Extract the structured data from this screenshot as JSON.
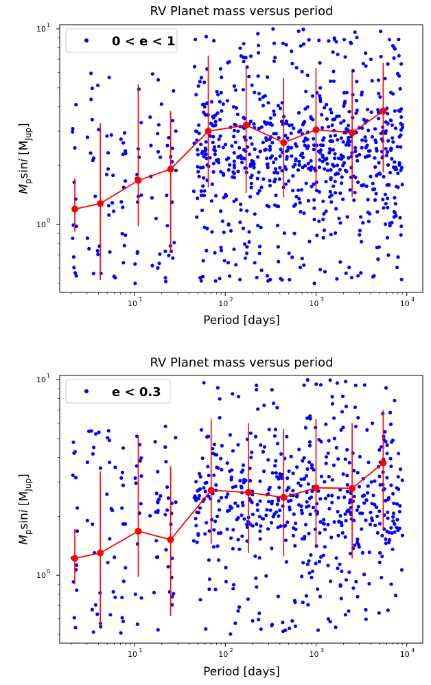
{
  "chart_data": [
    {
      "type": "scatter",
      "title": "RV Planet mass versus period",
      "xlabel": "Period [days]",
      "ylabel": "M_p sin i [M_Jup]",
      "xscale": "log",
      "yscale": "log",
      "xlim": [
        1.5,
        15000
      ],
      "ylim": [
        0.45,
        10.5
      ],
      "xticks": [
        {
          "value": 10,
          "base": "10",
          "exp": "1"
        },
        {
          "value": 100,
          "base": "10",
          "exp": "2"
        },
        {
          "value": 1000,
          "base": "10",
          "exp": "3"
        },
        {
          "value": 10000,
          "base": "10",
          "exp": "4"
        }
      ],
      "yticks": [
        {
          "value": 1,
          "base": "10",
          "exp": "0"
        },
        {
          "value": 10,
          "base": "10",
          "exp": "1"
        }
      ],
      "legend": {
        "position": "top-left",
        "label": "0 < e < 1"
      },
      "colors": {
        "points": "#0000ff",
        "binned": "#ff0000"
      },
      "scatter_seed": 11,
      "binned": {
        "x": [
          2.2,
          4.2,
          11,
          25,
          65,
          170,
          440,
          1000,
          2500,
          5500
        ],
        "y": [
          1.2,
          1.28,
          1.68,
          1.92,
          3.0,
          3.22,
          2.62,
          3.05,
          2.95,
          3.8
        ],
        "lower": [
          0.92,
          0.52,
          0.98,
          0.72,
          1.55,
          1.45,
          1.38,
          1.5,
          1.38,
          1.85
        ],
        "upper": [
          1.72,
          3.3,
          5.2,
          3.8,
          7.3,
          6.5,
          5.6,
          6.3,
          6.0,
          6.7
        ]
      }
    },
    {
      "type": "scatter",
      "title": "RV Planet mass versus period",
      "xlabel": "Period [days]",
      "ylabel": "M_p sin i [M_Jup]",
      "xscale": "log",
      "yscale": "log",
      "xlim": [
        1.5,
        15000
      ],
      "ylim": [
        0.45,
        10.5
      ],
      "xticks": [
        {
          "value": 10,
          "base": "10",
          "exp": "1"
        },
        {
          "value": 100,
          "base": "10",
          "exp": "2"
        },
        {
          "value": 1000,
          "base": "10",
          "exp": "3"
        },
        {
          "value": 10000,
          "base": "10",
          "exp": "4"
        }
      ],
      "yticks": [
        {
          "value": 1,
          "base": "10",
          "exp": "0"
        },
        {
          "value": 10,
          "base": "10",
          "exp": "1"
        }
      ],
      "legend": {
        "position": "top-left",
        "label": "e < 0.3"
      },
      "colors": {
        "points": "#0000ff",
        "binned": "#ff0000"
      },
      "scatter_seed": 29,
      "binned": {
        "x": [
          2.2,
          4.2,
          11,
          25,
          70,
          180,
          440,
          1000,
          2500,
          5500
        ],
        "y": [
          1.22,
          1.3,
          1.68,
          1.52,
          2.72,
          2.65,
          2.5,
          2.8,
          2.78,
          3.75
        ],
        "lower": [
          0.9,
          0.55,
          0.98,
          0.62,
          1.45,
          1.3,
          1.25,
          1.4,
          1.22,
          1.72
        ],
        "upper": [
          1.72,
          3.4,
          5.2,
          3.6,
          6.3,
          6.0,
          5.6,
          6.3,
          6.0,
          7.0
        ]
      }
    }
  ]
}
